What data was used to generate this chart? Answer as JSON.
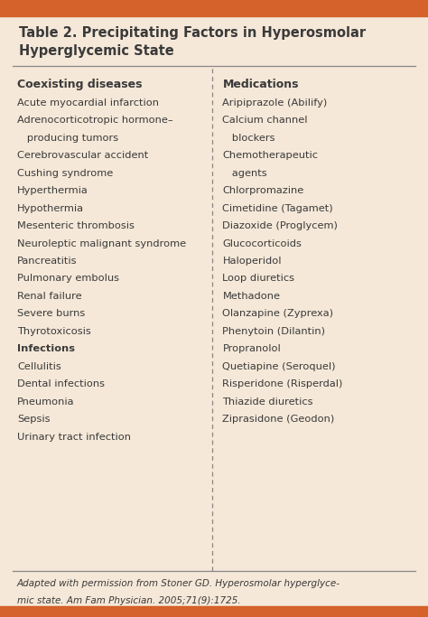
{
  "title_line1": "Table 2. Precipitating Factors in Hyperosmolar",
  "title_line2": "Hyperglycemic State",
  "background_color": "#f5e8d8",
  "border_color": "#d4622a",
  "text_color": "#3a3a3a",
  "left_header": "Coexisting diseases",
  "left_items": [
    {
      "text": "Acute myocardial infarction",
      "indent": false,
      "bold": false
    },
    {
      "text": "Adrenocorticotropic hormone–",
      "indent": false,
      "bold": false
    },
    {
      "text": "   producing tumors",
      "indent": true,
      "bold": false
    },
    {
      "text": "Cerebrovascular accident",
      "indent": false,
      "bold": false
    },
    {
      "text": "Cushing syndrome",
      "indent": false,
      "bold": false
    },
    {
      "text": "Hyperthermia",
      "indent": false,
      "bold": false
    },
    {
      "text": "Hypothermia",
      "indent": false,
      "bold": false
    },
    {
      "text": "Mesenteric thrombosis",
      "indent": false,
      "bold": false
    },
    {
      "text": "Neuroleptic malignant syndrome",
      "indent": false,
      "bold": false
    },
    {
      "text": "Pancreatitis",
      "indent": false,
      "bold": false
    },
    {
      "text": "Pulmonary embolus",
      "indent": false,
      "bold": false
    },
    {
      "text": "Renal failure",
      "indent": false,
      "bold": false
    },
    {
      "text": "Severe burns",
      "indent": false,
      "bold": false
    },
    {
      "text": "Thyrotoxicosis",
      "indent": false,
      "bold": false
    },
    {
      "text": "Infections",
      "indent": false,
      "bold": true
    },
    {
      "text": "Cellulitis",
      "indent": false,
      "bold": false
    },
    {
      "text": "Dental infections",
      "indent": false,
      "bold": false
    },
    {
      "text": "Pneumonia",
      "indent": false,
      "bold": false
    },
    {
      "text": "Sepsis",
      "indent": false,
      "bold": false
    },
    {
      "text": "Urinary tract infection",
      "indent": false,
      "bold": false
    }
  ],
  "right_header": "Medications",
  "right_items": [
    {
      "text": "Aripiprazole (Abilify)",
      "indent": false
    },
    {
      "text": "Calcium channel",
      "indent": false
    },
    {
      "text": "   blockers",
      "indent": true
    },
    {
      "text": "Chemotherapeutic",
      "indent": false
    },
    {
      "text": "   agents",
      "indent": true
    },
    {
      "text": "Chlorpromazine",
      "indent": false
    },
    {
      "text": "Cimetidine (Tagamet)",
      "indent": false
    },
    {
      "text": "Diazoxide (Proglycem)",
      "indent": false
    },
    {
      "text": "Glucocorticoids",
      "indent": false
    },
    {
      "text": "Haloperidol",
      "indent": false
    },
    {
      "text": "Loop diuretics",
      "indent": false
    },
    {
      "text": "Methadone",
      "indent": false
    },
    {
      "text": "Olanzapine (Zyprexa)",
      "indent": false
    },
    {
      "text": "Phenytoin (Dilantin)",
      "indent": false
    },
    {
      "text": "Propranolol",
      "indent": false
    },
    {
      "text": "Quetiapine (Seroquel)",
      "indent": false
    },
    {
      "text": "Risperidone (Risperdal)",
      "indent": false
    },
    {
      "text": "Thiazide diuretics",
      "indent": false
    },
    {
      "text": "Ziprasidone (Geodon)",
      "indent": false
    }
  ],
  "footnote_line1": "Adapted with permission from Stoner GD. Hyperosmolar hyperglyce-",
  "footnote_line2": "mic state. Am Fam Physician. 2005;71(9):1725.",
  "figsize": [
    4.74,
    6.83
  ],
  "dpi": 100
}
